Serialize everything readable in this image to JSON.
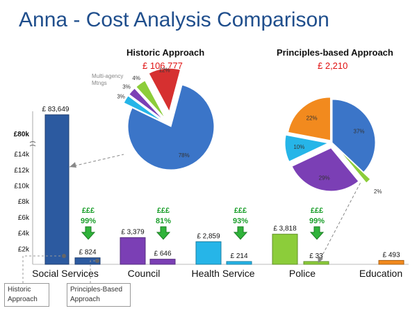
{
  "title": "Anna - Cost Analysis Comparison",
  "historic": {
    "title": "Historic Approach",
    "total": "£ 106,777"
  },
  "principles": {
    "title": "Principles-based Approach",
    "total": "£ 2,210"
  },
  "legend": {
    "historic": "Historic Approach",
    "principles": "Principles-Based Approach"
  },
  "chart_data": [
    {
      "type": "bar",
      "title": "Anna - Cost Analysis Comparison",
      "categories": [
        "Social Services",
        "Council",
        "Health Service",
        "Police",
        "Education"
      ],
      "series": [
        {
          "name": "Historic Approach",
          "values": [
            83649,
            3379,
            2859,
            3818,
            null
          ],
          "labels": [
            "£ 83,649",
            "£ 3,379",
            "£ 2,859",
            "£ 3,818",
            ""
          ],
          "colors": [
            "#2c5aa0",
            "#7b3fb5",
            "#26b5e8",
            "#8ccd3a",
            "#f28a1e"
          ]
        },
        {
          "name": "Principles-Based Approach",
          "values": [
            824,
            646,
            214,
            33,
            493
          ],
          "labels": [
            "£ 824",
            "£ 646",
            "£ 214",
            "£ 33",
            "£ 493"
          ],
          "colors": [
            "#2c5aa0",
            "#7b3fb5",
            "#26b5e8",
            "#8ccd3a",
            "#f28a1e"
          ]
        }
      ],
      "savings": [
        {
          "symbol": "£££",
          "pct": "99%"
        },
        {
          "symbol": "£££",
          "pct": "81%"
        },
        {
          "symbol": "£££",
          "pct": "93%"
        },
        {
          "symbol": "£££",
          "pct": "99%"
        }
      ],
      "yticks": [
        "£2k",
        "£4k",
        "£6k",
        "£8k",
        "£10k",
        "£12k",
        "£14k",
        "£80k"
      ],
      "ytick_values": [
        2000,
        4000,
        6000,
        8000,
        10000,
        12000,
        14000,
        80000
      ],
      "ylim": [
        0,
        15000
      ],
      "axis_break": true
    },
    {
      "type": "pie",
      "title": "Historic Approach",
      "labels": [
        "Social Services",
        "Council",
        "Health Service",
        "Police",
        "Multi-agency Mtngs"
      ],
      "values": [
        78,
        3,
        3,
        4,
        12
      ],
      "display": [
        "78%",
        "3%",
        "3%",
        "4%",
        "12%"
      ],
      "callout": "Multi-agency Mtngs",
      "colors": [
        "#3b75c8",
        "#26b5e8",
        "#7b3fb5",
        "#8ccd3a",
        "#d63030"
      ]
    },
    {
      "type": "pie",
      "title": "Principles-based Approach",
      "labels": [
        "Social Services",
        "Police",
        "Council",
        "Health Service",
        "Education"
      ],
      "values": [
        37,
        2,
        29,
        10,
        22
      ],
      "display": [
        "37%",
        "2%",
        "29%",
        "10%",
        "22%"
      ],
      "colors": [
        "#3b75c8",
        "#8ccd3a",
        "#7b3fb5",
        "#26b5e8",
        "#f28a1e"
      ]
    }
  ]
}
